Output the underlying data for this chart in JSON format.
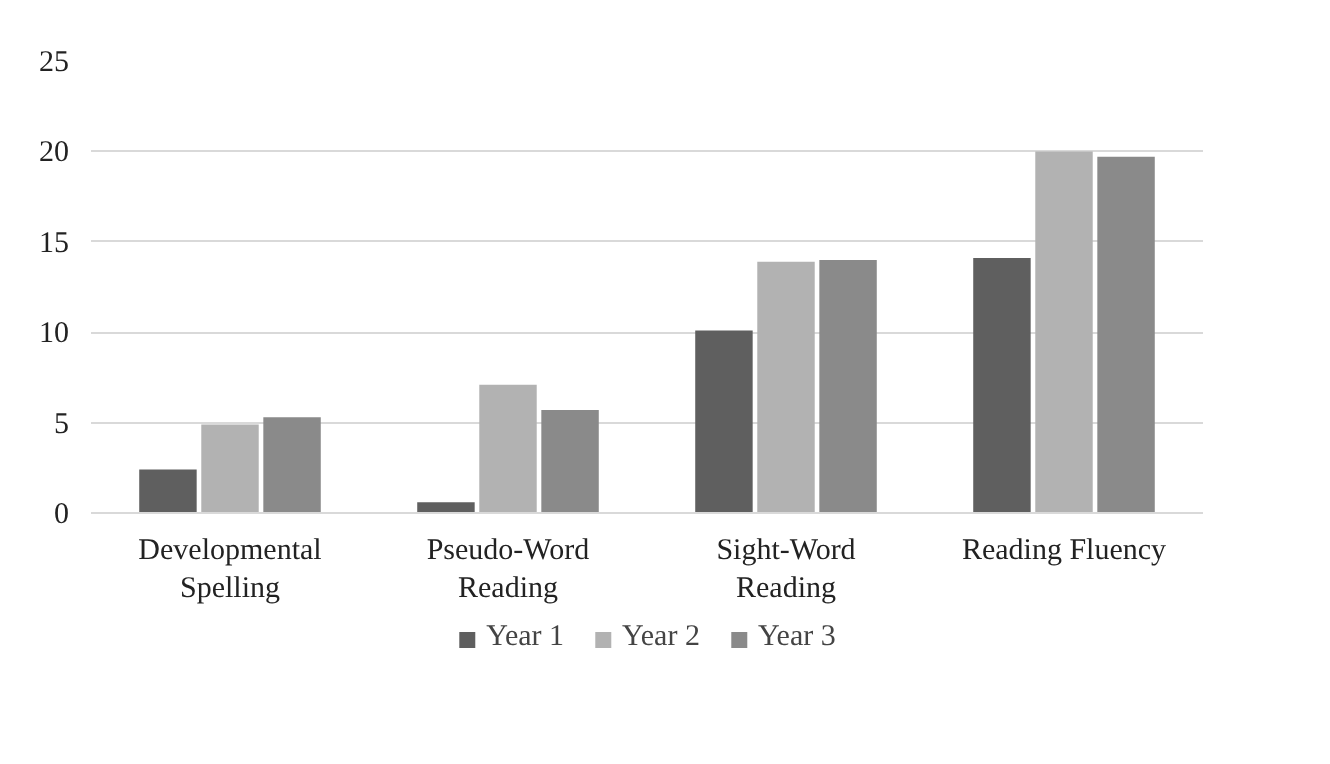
{
  "chart_data": {
    "type": "bar",
    "categories": [
      "Developmental Spelling",
      "Pseudo-Word Reading",
      "Sight-Word Reading",
      "Reading Fluency"
    ],
    "series": [
      {
        "name": "Year 1",
        "color": "#5f5f5f",
        "values": [
          2.4,
          0.6,
          10.1,
          14.1
        ]
      },
      {
        "name": "Year 2",
        "color": "#b2b2b2",
        "values": [
          4.9,
          7.1,
          13.9,
          20.0
        ]
      },
      {
        "name": "Year 3",
        "color": "#8a8a8a",
        "values": [
          5.3,
          5.7,
          14.0,
          19.7
        ]
      }
    ],
    "ylim": [
      0,
      25
    ],
    "yticks": [
      0,
      5,
      10,
      15,
      20,
      25
    ],
    "grid": "y",
    "legend": "bottom"
  }
}
